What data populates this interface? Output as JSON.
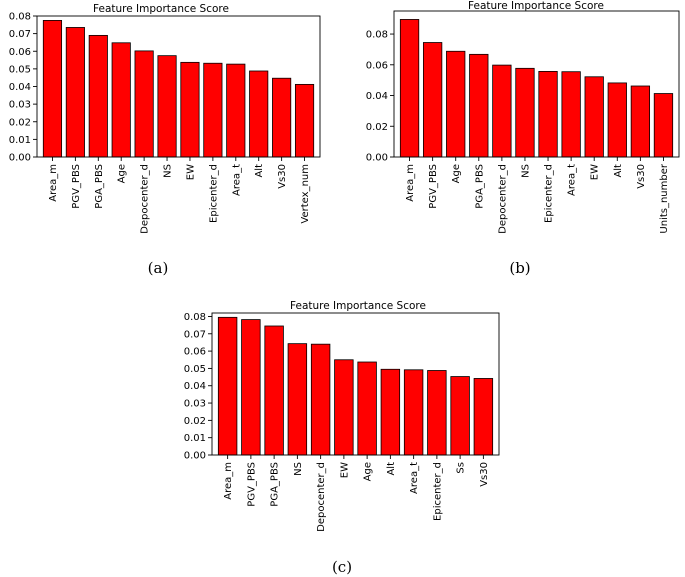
{
  "figure": {
    "captions": [
      "(a)",
      "(b)",
      "(c)"
    ]
  },
  "chart_data": [
    {
      "type": "bar",
      "title": "Feature Importance Score",
      "xlabel": "",
      "ylabel": "",
      "ylim": [
        0,
        0.08
      ],
      "yticks": [
        "0.00",
        "0.01",
        "0.02",
        "0.03",
        "0.04",
        "0.05",
        "0.06",
        "0.07",
        "0.08"
      ],
      "categories": [
        "Area_m",
        "PGV_PBS",
        "PGA_PBS",
        "Age",
        "Depocenter_d",
        "NS",
        "EW",
        "Epicenter_d",
        "Area_t",
        "Alt",
        "Vs30",
        "Vertex_num"
      ],
      "values": [
        0.0775,
        0.0735,
        0.069,
        0.0648,
        0.0602,
        0.0575,
        0.0537,
        0.0532,
        0.0527,
        0.0488,
        0.0447,
        0.0412
      ],
      "bar_color": "#ff0000",
      "edge_color": "#000000"
    },
    {
      "type": "bar",
      "title": "Feature Importance Score",
      "xlabel": "",
      "ylabel": "",
      "ylim": [
        0,
        0.095
      ],
      "yticks": [
        "0.00",
        "0.02",
        "0.04",
        "0.06",
        "0.08"
      ],
      "categories": [
        "Area_m",
        "PGV_PBS",
        "Age",
        "PGA_PBS",
        "Depocenter_d",
        "NS",
        "Epicenter_d",
        "Area_t",
        "EW",
        "Alt",
        "Vs30",
        "Units_number"
      ],
      "values": [
        0.0895,
        0.0745,
        0.0688,
        0.0668,
        0.0598,
        0.0577,
        0.0557,
        0.0555,
        0.0522,
        0.0482,
        0.0462,
        0.0413
      ],
      "bar_color": "#ff0000",
      "edge_color": "#000000"
    },
    {
      "type": "bar",
      "title": "Feature Importance Score",
      "xlabel": "",
      "ylabel": "",
      "ylim": [
        0,
        0.082
      ],
      "yticks": [
        "0.00",
        "0.01",
        "0.02",
        "0.03",
        "0.04",
        "0.05",
        "0.06",
        "0.07",
        "0.08"
      ],
      "categories": [
        "Area_m",
        "PGV_PBS",
        "PGA_PBS",
        "NS",
        "Depocenter_d",
        "EW",
        "Age",
        "Alt",
        "Area_t",
        "Epicenter_d",
        "Ss",
        "Vs30"
      ],
      "values": [
        0.0795,
        0.0782,
        0.0745,
        0.0643,
        0.064,
        0.055,
        0.0537,
        0.0495,
        0.0492,
        0.0488,
        0.0453,
        0.0442
      ],
      "bar_color": "#ff0000",
      "edge_color": "#000000"
    }
  ]
}
